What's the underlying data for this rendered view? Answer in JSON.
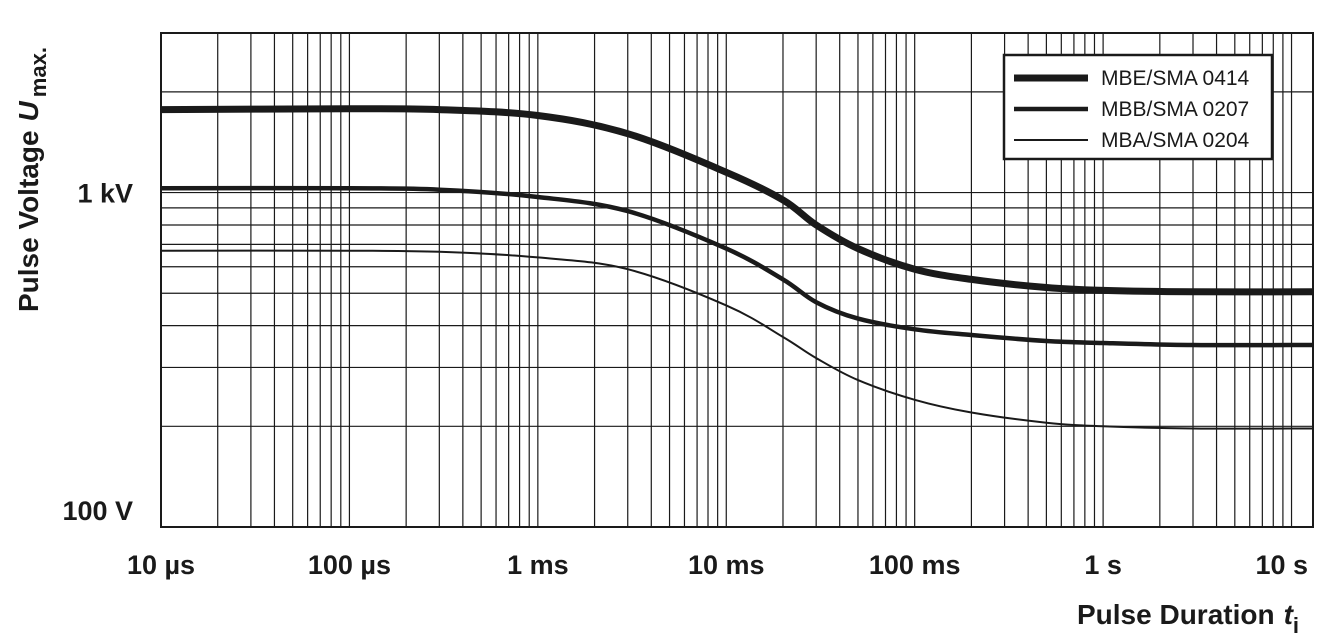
{
  "chart_data": {
    "type": "line",
    "xscale": "log",
    "yscale": "log",
    "x_unit": "s",
    "y_unit": "V",
    "xlim": [
      1e-05,
      13
    ],
    "ylim": [
      100,
      3000
    ],
    "grid": true,
    "legend_position": "top-right",
    "title": "",
    "xlabel": "Pulse Duration",
    "xlabel_symbol": "t",
    "xlabel_subscript": "i",
    "ylabel": "Pulse Voltage",
    "ylabel_symbol": "U",
    "ylabel_subscript": "max.",
    "x_ticks": [
      {
        "value": 1e-05,
        "label": "10 µs"
      },
      {
        "value": 0.0001,
        "label": "100 µs"
      },
      {
        "value": 0.001,
        "label": "1 ms"
      },
      {
        "value": 0.01,
        "label": "10 ms"
      },
      {
        "value": 0.1,
        "label": "100 ms"
      },
      {
        "value": 1,
        "label": "1 s"
      },
      {
        "value": 10,
        "label": "10 s"
      }
    ],
    "y_ticks": [
      {
        "value": 100,
        "label": "100 V"
      },
      {
        "value": 1000,
        "label": "1 kV"
      }
    ],
    "series": [
      {
        "name": "MBE/SMA 0414",
        "color": "#1a1a1a",
        "weight": "heavy",
        "x": [
          1e-05,
          0.0001,
          0.0003,
          0.001,
          0.003,
          0.01,
          0.02,
          0.03,
          0.05,
          0.1,
          0.2,
          0.5,
          1,
          3,
          13
        ],
        "y": [
          1770,
          1780,
          1770,
          1700,
          1500,
          1150,
          950,
          800,
          680,
          590,
          550,
          520,
          510,
          505,
          505
        ]
      },
      {
        "name": "MBB/SMA 0207",
        "color": "#1a1a1a",
        "weight": "medium",
        "x": [
          1e-05,
          0.0001,
          0.0003,
          0.001,
          0.003,
          0.01,
          0.02,
          0.03,
          0.05,
          0.1,
          0.2,
          0.5,
          1,
          3,
          13
        ],
        "y": [
          1030,
          1030,
          1020,
          970,
          880,
          680,
          550,
          470,
          420,
          390,
          375,
          360,
          355,
          350,
          350
        ]
      },
      {
        "name": "MBA/SMA 0204",
        "color": "#1a1a1a",
        "weight": "light",
        "x": [
          1e-05,
          0.0001,
          0.0003,
          0.001,
          0.003,
          0.01,
          0.02,
          0.03,
          0.05,
          0.1,
          0.2,
          0.5,
          1,
          3,
          13
        ],
        "y": [
          670,
          670,
          665,
          640,
          590,
          460,
          370,
          320,
          275,
          240,
          220,
          205,
          200,
          197,
          197
        ]
      }
    ]
  }
}
